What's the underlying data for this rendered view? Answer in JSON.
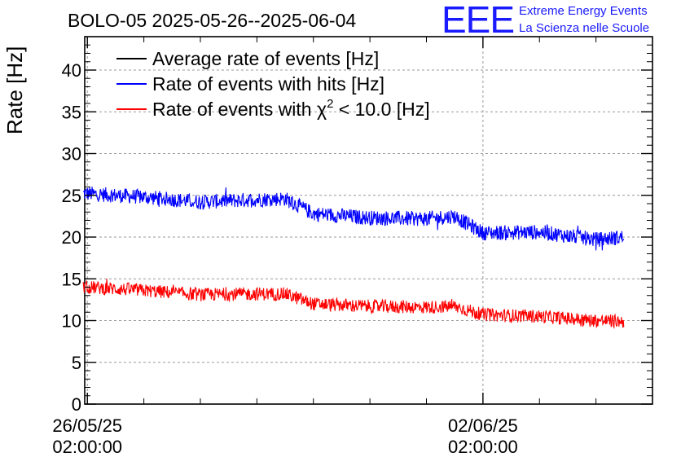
{
  "chart_data": {
    "type": "line",
    "title": "BOLO-05 2025-05-26--2025-06-04",
    "ylabel": "Rate [Hz]",
    "xlabel": "",
    "ylim": [
      0,
      44
    ],
    "yticks": [
      0,
      5,
      10,
      15,
      20,
      25,
      30,
      35,
      40
    ],
    "ytick_labels": [
      "0",
      "5",
      "10",
      "15",
      "20",
      "25",
      "30",
      "35",
      "40"
    ],
    "xlim": [
      "2025-05-26T00:53",
      "2025-06-05T02:00"
    ],
    "xticks": [
      {
        "date": "2025-05-26T02:00:00",
        "line1": "26/05/25",
        "line2": "02:00:00"
      },
      {
        "date": "2025-06-02T02:00:00",
        "line1": "02/06/25",
        "line2": "02:00:00"
      }
    ],
    "grid": true,
    "legend_position": "top-left",
    "legend": [
      {
        "name": "Average rate of events [Hz]",
        "color": "#000000"
      },
      {
        "name": "Rate of events with hits [Hz]",
        "color": "#0000ff"
      },
      {
        "name": "Rate of events with χ² < 10.0 [Hz]",
        "name_pre": "Rate of events with ",
        "name_chi": "χ",
        "name_sup": "2",
        "name_post": " < 10.0 [Hz]",
        "color": "#ff0000"
      }
    ],
    "series": [
      {
        "name": "Rate of events with hits [Hz]",
        "color": "#0000ff",
        "x": [
          "2025-05-26T02:00",
          "2025-05-27T02:00",
          "2025-05-28T02:00",
          "2025-05-29T02:00",
          "2025-05-29T14:00",
          "2025-05-30T02:00",
          "2025-05-31T02:00",
          "2025-06-01T02:00",
          "2025-06-01T14:00",
          "2025-06-02T02:00",
          "2025-06-03T02:00",
          "2025-06-04T02:00",
          "2025-06-04T14:00"
        ],
        "values": [
          25.2,
          24.8,
          24.2,
          24.5,
          24.6,
          22.8,
          22.3,
          22.2,
          22.5,
          20.5,
          20.6,
          19.7,
          20.0
        ],
        "band": 0.9
      },
      {
        "name": "Rate of events with χ² < 10.0 [Hz]",
        "color": "#ff0000",
        "x": [
          "2025-05-26T02:00",
          "2025-05-27T02:00",
          "2025-05-28T02:00",
          "2025-05-29T02:00",
          "2025-05-29T14:00",
          "2025-05-30T02:00",
          "2025-05-31T02:00",
          "2025-06-01T02:00",
          "2025-06-01T14:00",
          "2025-06-02T02:00",
          "2025-06-03T02:00",
          "2025-06-04T02:00",
          "2025-06-04T14:00"
        ],
        "values": [
          14.0,
          13.6,
          13.1,
          13.2,
          13.2,
          12.0,
          11.7,
          11.6,
          11.7,
          10.7,
          10.5,
          10.0,
          9.9
        ],
        "band": 0.8
      }
    ]
  },
  "logo": {
    "mark": "EEE",
    "line1": "Extreme Energy Events",
    "line2": "La Scienza nelle Scuole"
  }
}
